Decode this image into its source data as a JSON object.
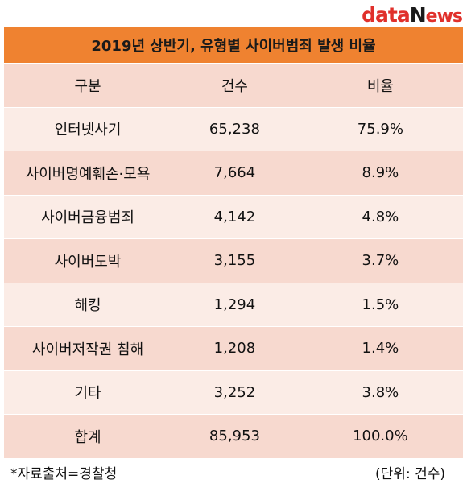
{
  "logo": {
    "text_d": "d",
    "text_ata": "ata",
    "text_n": "N",
    "text_ews": "ews"
  },
  "title": "2019년 상반기, 유형별 사이버범죄 발생 비율",
  "chart_data": {
    "type": "table",
    "title": "2019년 상반기, 유형별 사이버범죄 발생 비율",
    "columns": [
      "구분",
      "건수",
      "비율"
    ],
    "rows": [
      [
        "인터넷사기",
        "65,238",
        "75.9%"
      ],
      [
        "사이버명예훼손·모욕",
        "7,664",
        "8.9%"
      ],
      [
        "사이버금융범죄",
        "4,142",
        "4.8%"
      ],
      [
        "사이버도박",
        "3,155",
        "3.7%"
      ],
      [
        "해킹",
        "1,294",
        "1.5%"
      ],
      [
        "사이버저작권 침해",
        "1,208",
        "1.4%"
      ],
      [
        "기타",
        "3,252",
        "3.8%"
      ],
      [
        "합계",
        "85,953",
        "100.0%"
      ]
    ],
    "colors": {
      "header": "#ef8230",
      "row_odd": "#f7d9cf",
      "row_even": "#fbece6"
    }
  },
  "footer": {
    "source": "*자료출처=경찰청",
    "unit": "(단위: 건수)"
  }
}
